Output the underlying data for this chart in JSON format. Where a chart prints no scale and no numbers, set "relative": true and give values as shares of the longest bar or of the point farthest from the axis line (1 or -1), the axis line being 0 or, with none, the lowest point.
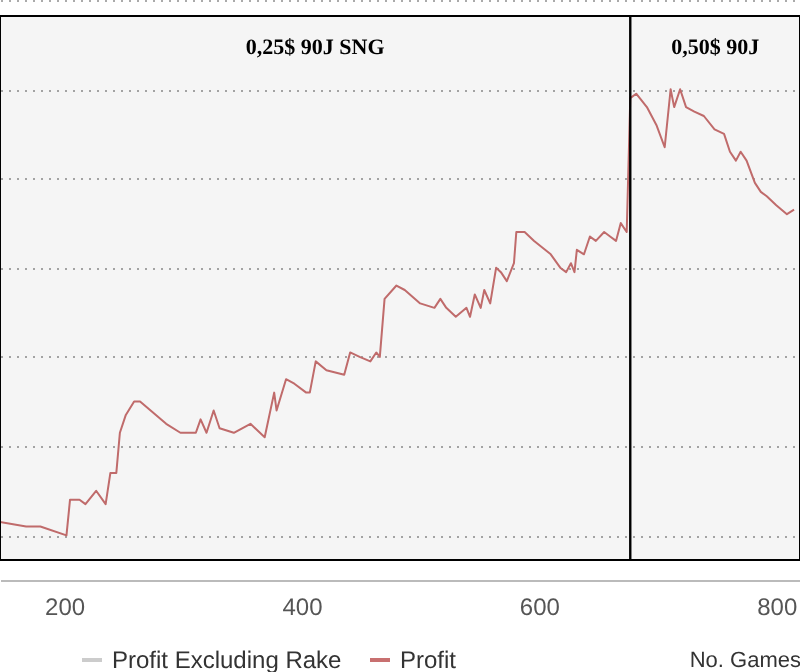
{
  "chart_data": {
    "type": "line",
    "relative": true,
    "xlabel": "No. Games",
    "xlim": [
      146,
      820
    ],
    "xticks": [
      200,
      400,
      600,
      800
    ],
    "grid": "y",
    "legend": "bottom",
    "series": [
      {
        "name": "Profit Excluding Rake",
        "color": "#cccccc"
      },
      {
        "name": "Profit",
        "color": "#c87070",
        "x": [
          146,
          168,
          180,
          202,
          205,
          213,
          218,
          227,
          235,
          239,
          244,
          247,
          252,
          259,
          264,
          286,
          298,
          311,
          315,
          320,
          326,
          331,
          343,
          357,
          369,
          377,
          379,
          387,
          394,
          404,
          407,
          412,
          421,
          436,
          441,
          449,
          458,
          463,
          466,
          470,
          480,
          487,
          500,
          512,
          517,
          522,
          530,
          539,
          542,
          546,
          551,
          554,
          559,
          564,
          568,
          573,
          579,
          581,
          588,
          596,
          610,
          618,
          623,
          627,
          630,
          632,
          638,
          643,
          648,
          655,
          660,
          665,
          669,
          674,
          677,
          682,
          691,
          699,
          706,
          711,
          714,
          719,
          724,
          731,
          739,
          748,
          756,
          761,
          766,
          770,
          775,
          782,
          787,
          792,
          800,
          809,
          815
        ],
        "values": [
          0.03,
          0.02,
          0.02,
          0,
          0.08,
          0.08,
          0.07,
          0.1,
          0.07,
          0.14,
          0.14,
          0.23,
          0.27,
          0.3,
          0.3,
          0.25,
          0.23,
          0.23,
          0.26,
          0.23,
          0.28,
          0.24,
          0.23,
          0.25,
          0.22,
          0.32,
          0.28,
          0.35,
          0.34,
          0.32,
          0.32,
          0.39,
          0.37,
          0.36,
          0.41,
          0.4,
          0.39,
          0.41,
          0.4,
          0.53,
          0.56,
          0.55,
          0.52,
          0.51,
          0.53,
          0.51,
          0.49,
          0.51,
          0.49,
          0.54,
          0.51,
          0.55,
          0.52,
          0.6,
          0.59,
          0.57,
          0.61,
          0.68,
          0.68,
          0.66,
          0.63,
          0.6,
          0.59,
          0.61,
          0.59,
          0.64,
          0.63,
          0.67,
          0.66,
          0.68,
          0.67,
          0.66,
          0.7,
          0.68,
          0.98,
          0.99,
          0.96,
          0.92,
          0.87,
          1.0,
          0.96,
          1.0,
          0.96,
          0.95,
          0.94,
          0.91,
          0.9,
          0.86,
          0.84,
          0.86,
          0.84,
          0.79,
          0.77,
          0.76,
          0.74,
          0.72,
          0.73
        ]
      }
    ],
    "bands": [
      {
        "axis": "x",
        "from": 146,
        "to": 677,
        "label": "0,25$ 90J SNG"
      },
      {
        "axis": "x",
        "from": 677,
        "to": 820,
        "label": "0,50$ 90J"
      }
    ]
  }
}
